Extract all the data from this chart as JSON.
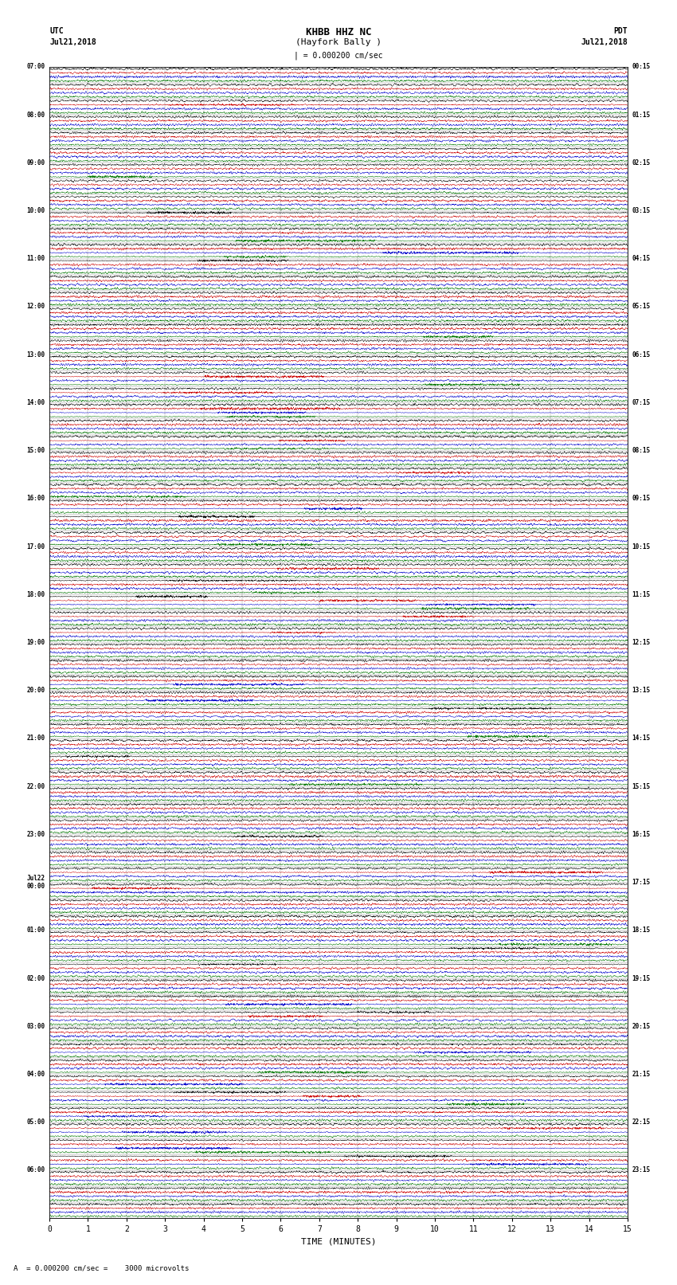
{
  "title_line1": "KHBB HHZ NC",
  "title_line2": "(Hayfork Bally )",
  "scale_label": "= 0.000200 cm/sec",
  "bottom_label": "A  = 0.000200 cm/sec =    3000 microvolts",
  "xlabel": "TIME (MINUTES)",
  "left_header": "UTC",
  "left_date": "Jul21,2018",
  "right_header": "PDT",
  "right_date": "Jul21,2018",
  "bg_color": "#ffffff",
  "trace_colors": [
    "#000000",
    "#cc0000",
    "#0000cc",
    "#007700"
  ],
  "left_times": [
    "07:00",
    "",
    "",
    "08:00",
    "",
    "",
    "09:00",
    "",
    "",
    "10:00",
    "",
    "",
    "11:00",
    "",
    "",
    "12:00",
    "",
    "",
    "13:00",
    "",
    "",
    "14:00",
    "",
    "",
    "15:00",
    "",
    "",
    "16:00",
    "",
    "",
    "17:00",
    "",
    "",
    "18:00",
    "",
    "",
    "19:00",
    "",
    "",
    "20:00",
    "",
    "",
    "21:00",
    "",
    "",
    "22:00",
    "",
    "",
    "23:00",
    "",
    "",
    "Jul22",
    "00:00",
    "",
    "01:00",
    "",
    "",
    "02:00",
    "",
    "",
    "03:00",
    "",
    "",
    "04:00",
    "",
    "",
    "05:00",
    "",
    "",
    "06:00",
    "",
    ""
  ],
  "left_time_rows": [
    0,
    3,
    6,
    9,
    12,
    15,
    18,
    21,
    24,
    27,
    30,
    33,
    36,
    39,
    42,
    45,
    48,
    51,
    54,
    57,
    60,
    63,
    66,
    69
  ],
  "jul22_row": 57,
  "jul22_subrow": 58,
  "right_times": [
    "00:15",
    "01:15",
    "02:15",
    "03:15",
    "04:15",
    "05:15",
    "06:15",
    "07:15",
    "08:15",
    "09:15",
    "10:15",
    "11:15",
    "12:15",
    "13:15",
    "14:15",
    "15:15",
    "16:15",
    "17:15",
    "18:15",
    "19:15",
    "20:15",
    "21:15",
    "22:15",
    "23:15"
  ],
  "right_time_rows": [
    0,
    3,
    6,
    9,
    12,
    15,
    18,
    21,
    24,
    27,
    30,
    33,
    36,
    39,
    42,
    45,
    48,
    51,
    54,
    57,
    60,
    63,
    66,
    69
  ],
  "n_rows": 72,
  "n_traces": 4,
  "minutes_per_row": 15,
  "xticks": [
    0,
    1,
    2,
    3,
    4,
    5,
    6,
    7,
    8,
    9,
    10,
    11,
    12,
    13,
    14,
    15
  ],
  "figwidth": 8.5,
  "figheight": 16.13,
  "dpi": 100
}
